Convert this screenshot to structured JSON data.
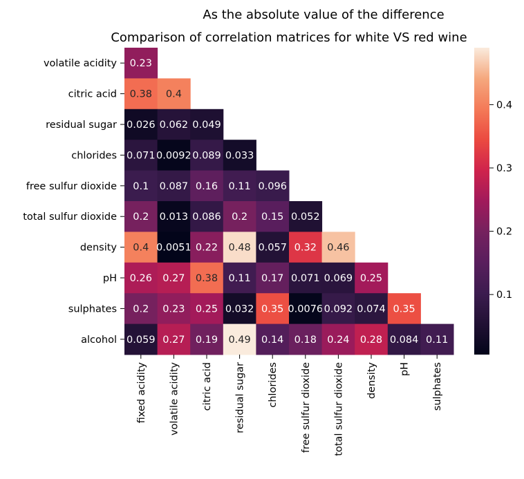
{
  "chart_data": {
    "type": "heatmap",
    "title": "As the absolute value of the difference",
    "subtitle": "Comparison of correlation matrices for white VS red wine",
    "x_labels": [
      "fixed acidity",
      "volatile acidity",
      "citric acid",
      "residual sugar",
      "chlorides",
      "free sulfur dioxide",
      "total sulfur dioxide",
      "density",
      "pH",
      "sulphates"
    ],
    "y_labels": [
      "volatile acidity",
      "citric acid",
      "residual sugar",
      "chlorides",
      "free sulfur dioxide",
      "total sulfur dioxide",
      "density",
      "pH",
      "sulphates",
      "alcohol"
    ],
    "values": [
      [
        0.23,
        null,
        null,
        null,
        null,
        null,
        null,
        null,
        null,
        null
      ],
      [
        0.38,
        0.4,
        null,
        null,
        null,
        null,
        null,
        null,
        null,
        null
      ],
      [
        0.026,
        0.062,
        0.049,
        null,
        null,
        null,
        null,
        null,
        null,
        null
      ],
      [
        0.071,
        0.0092,
        0.089,
        0.033,
        null,
        null,
        null,
        null,
        null,
        null
      ],
      [
        0.1,
        0.087,
        0.16,
        0.11,
        0.096,
        null,
        null,
        null,
        null,
        null
      ],
      [
        0.2,
        0.013,
        0.086,
        0.2,
        0.15,
        0.052,
        null,
        null,
        null,
        null
      ],
      [
        0.4,
        0.0051,
        0.22,
        0.48,
        0.057,
        0.32,
        0.46,
        null,
        null,
        null
      ],
      [
        0.26,
        0.27,
        0.38,
        0.11,
        0.17,
        0.071,
        0.069,
        0.25,
        null,
        null
      ],
      [
        0.2,
        0.23,
        0.25,
        0.032,
        0.35,
        0.0076,
        0.092,
        0.074,
        0.35,
        null
      ],
      [
        0.059,
        0.27,
        0.19,
        0.49,
        0.14,
        0.18,
        0.24,
        0.28,
        0.084,
        0.11
      ]
    ],
    "cell_labels": [
      [
        "0.23",
        null,
        null,
        null,
        null,
        null,
        null,
        null,
        null,
        null
      ],
      [
        "0.38",
        "0.4",
        null,
        null,
        null,
        null,
        null,
        null,
        null,
        null
      ],
      [
        "0.026",
        "0.062",
        "0.049",
        null,
        null,
        null,
        null,
        null,
        null,
        null
      ],
      [
        "0.071",
        "0.0092",
        "0.089",
        "0.033",
        null,
        null,
        null,
        null,
        null,
        null
      ],
      [
        "0.1",
        "0.087",
        "0.16",
        "0.11",
        "0.096",
        null,
        null,
        null,
        null,
        null
      ],
      [
        "0.2",
        "0.013",
        "0.086",
        "0.2",
        "0.15",
        "0.052",
        null,
        null,
        null,
        null
      ],
      [
        "0.4",
        "0.0051",
        "0.22",
        "0.48",
        "0.057",
        "0.32",
        "0.46",
        null,
        null,
        null
      ],
      [
        "0.26",
        "0.27",
        "0.38",
        "0.11",
        "0.17",
        "0.071",
        "0.069",
        "0.25",
        null,
        null
      ],
      [
        "0.2",
        "0.23",
        "0.25",
        "0.032",
        "0.35",
        "0.0076",
        "0.092",
        "0.074",
        "0.35",
        null
      ],
      [
        "0.059",
        "0.27",
        "0.19",
        "0.49",
        "0.14",
        "0.18",
        "0.24",
        "0.28",
        "0.084",
        "0.11"
      ]
    ],
    "colormap": "rocket",
    "vmin": 0.0051,
    "vmax": 0.49,
    "colorbar_ticks": [
      0.1,
      0.2,
      0.3,
      0.4
    ],
    "colorbar_tick_labels": [
      "0.1",
      "0.2",
      "0.3",
      "0.4"
    ],
    "grid": false
  }
}
